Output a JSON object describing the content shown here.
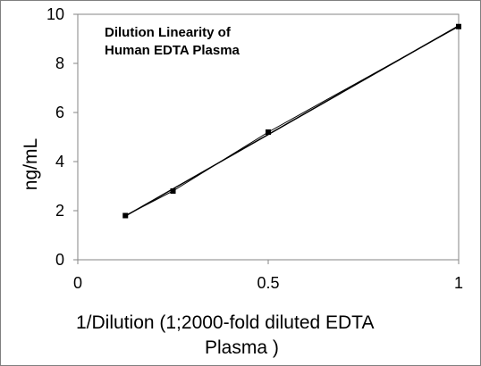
{
  "chart_data": {
    "type": "scatter",
    "title": [
      "Dilution Linearity of",
      "Human EDTA Plasma"
    ],
    "xlabel": [
      "1/Dilution (1;2000-fold diluted EDTA",
      "Plasma )"
    ],
    "ylabel": "ng/mL",
    "xlim": [
      0,
      1
    ],
    "ylim": [
      0,
      10
    ],
    "xticks": [
      0,
      0.5,
      1
    ],
    "xtick_labels": [
      "0",
      "0.5",
      "1"
    ],
    "yticks": [
      0,
      2,
      4,
      6,
      8,
      10
    ],
    "ytick_labels": [
      "0",
      "2",
      "4",
      "6",
      "8",
      "10"
    ],
    "grid": false,
    "legend": "none",
    "series": [
      {
        "x": [
          0.125,
          0.25,
          0.5,
          1
        ],
        "y": [
          1.8,
          2.8,
          5.2,
          9.5
        ],
        "marker": "square",
        "trendline": "linear"
      }
    ],
    "colors": {
      "line": "#000000",
      "marker": "#000000",
      "axis": "#868686"
    }
  }
}
